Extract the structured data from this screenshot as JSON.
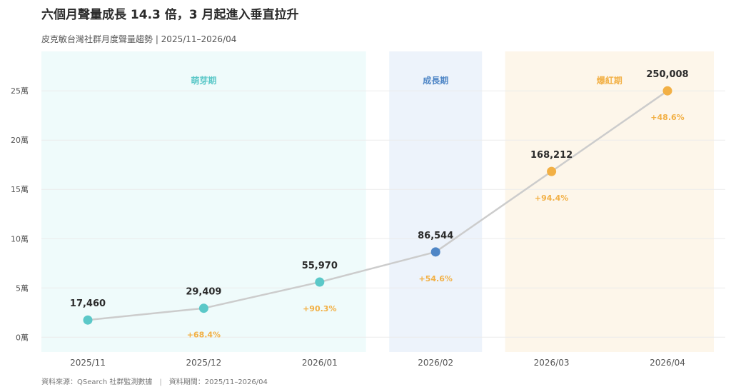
{
  "header": {
    "title": "六個月聲量成長 14.3 倍，3 月起進入垂直拉升",
    "subtitle": "皮克敏台灣社群月度聲量趨勢 | 2025/11–2026/04"
  },
  "footer": {
    "source": "資料來源：QSearch 社群監測數據",
    "period": "資料期間：2025/11–2026/04"
  },
  "colors": {
    "sprout": "#5bc8c8",
    "growth": "#4f86c6",
    "hot": "#f2b045",
    "line": "#cccccc"
  },
  "chart_data": {
    "type": "line",
    "title": "六個月聲量成長 14.3 倍，3 月起進入垂直拉升",
    "subtitle": "皮克敏台灣社群月度聲量趨勢 | 2025/11–2026/04",
    "categories": [
      "2025/11",
      "2025/12",
      "2026/01",
      "2026/02",
      "2026/03",
      "2026/04"
    ],
    "values": [
      17460,
      29409,
      55970,
      86544,
      168212,
      250008
    ],
    "value_labels": [
      "17,460",
      "29,409",
      "55,970",
      "86,544",
      "168,212",
      "250,008"
    ],
    "growth_labels": [
      "",
      "+68.4%",
      "+90.3%",
      "+54.6%",
      "+94.4%",
      "+48.6%"
    ],
    "point_phase": [
      "sprout",
      "sprout",
      "sprout",
      "growth",
      "hot",
      "hot"
    ],
    "ylim": [
      -15000,
      290000
    ],
    "yticks": [
      0,
      50000,
      100000,
      150000,
      200000,
      250000
    ],
    "ytick_labels": [
      "0萬",
      "5萬",
      "10萬",
      "15萬",
      "20萬",
      "25萬"
    ],
    "phases": [
      {
        "label": "萌芽期",
        "key": "sprout",
        "start_index": 0,
        "end_index": 2,
        "fill": "#effbfb"
      },
      {
        "label": "成長期",
        "key": "growth",
        "start_index": 3,
        "end_index": 3,
        "fill": "#edf3fb"
      },
      {
        "label": "爆紅期",
        "key": "hot",
        "start_index": 4,
        "end_index": 5,
        "fill": "#fdf6ea"
      }
    ],
    "grid": true,
    "legend": "none"
  }
}
